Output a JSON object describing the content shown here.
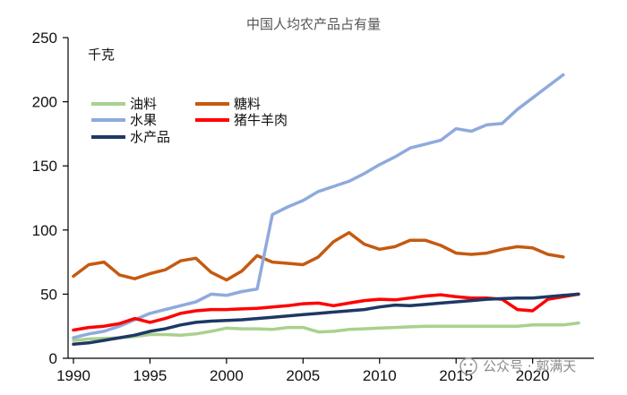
{
  "chart_data": {
    "type": "line",
    "title": "中国人均农产品占有量",
    "ylabel": "千克",
    "xlabel": "",
    "xlim": [
      1990,
      2024
    ],
    "ylim": [
      0,
      250
    ],
    "xticks": [
      1990,
      1995,
      2000,
      2005,
      2010,
      2015,
      2020
    ],
    "yticks": [
      0,
      50,
      100,
      150,
      200,
      250
    ],
    "x": [
      1990,
      1991,
      1992,
      1993,
      1994,
      1995,
      1996,
      1997,
      1998,
      1999,
      2000,
      2001,
      2002,
      2003,
      2004,
      2005,
      2006,
      2007,
      2008,
      2009,
      2010,
      2011,
      2012,
      2013,
      2014,
      2015,
      2016,
      2017,
      2018,
      2019,
      2020,
      2021,
      2022,
      2023
    ],
    "series": [
      {
        "name": "油料",
        "color": "#a9d18e",
        "values": [
          14,
          15,
          15.5,
          16,
          17,
          18.5,
          18.5,
          18,
          19,
          21,
          23.5,
          23,
          23,
          22.5,
          24,
          24,
          20.5,
          21,
          22.5,
          23,
          23.5,
          24,
          24.5,
          25,
          25,
          25,
          25,
          25,
          25,
          25,
          26,
          26,
          26,
          27.5
        ]
      },
      {
        "name": "糖料",
        "color": "#c55a11",
        "values": [
          64,
          73,
          75,
          65,
          62,
          66,
          69,
          76,
          78,
          67,
          61,
          68,
          80,
          75,
          74,
          73,
          79,
          91,
          98,
          89,
          85,
          87,
          92,
          92,
          88,
          82,
          81,
          82,
          85,
          87,
          86,
          81,
          79,
          null
        ]
      },
      {
        "name": "水果",
        "color": "#8faadc",
        "values": [
          16,
          19,
          21,
          25,
          30,
          35,
          38,
          41,
          44,
          50,
          49,
          52,
          54,
          112,
          118,
          123,
          130,
          134,
          138,
          144,
          151,
          157,
          164,
          167,
          170,
          179,
          177,
          182,
          183,
          194,
          203,
          212,
          221,
          null
        ]
      },
      {
        "name": "猪牛羊肉",
        "color": "#ff0000",
        "values": [
          22,
          24,
          25,
          27,
          31,
          28,
          31,
          35,
          37,
          38,
          38,
          38.5,
          39,
          40,
          41,
          42.5,
          43,
          41,
          43,
          45,
          46,
          45.5,
          47,
          48.5,
          49.5,
          48,
          47,
          47,
          46,
          38,
          37,
          46,
          48,
          50
        ]
      },
      {
        "name": "水产品",
        "color": "#1f3864",
        "values": [
          11,
          12,
          14,
          16,
          18,
          21,
          23,
          26,
          28,
          29,
          29.5,
          30,
          31,
          32,
          33,
          34,
          35,
          36,
          37,
          38,
          40,
          41.5,
          41,
          42,
          43,
          44,
          45,
          46,
          46.5,
          47,
          47,
          48,
          49,
          50
        ]
      }
    ],
    "legend": {
      "placement": "top-left"
    },
    "grid": false
  },
  "watermark": "公众号 · 郭满天"
}
